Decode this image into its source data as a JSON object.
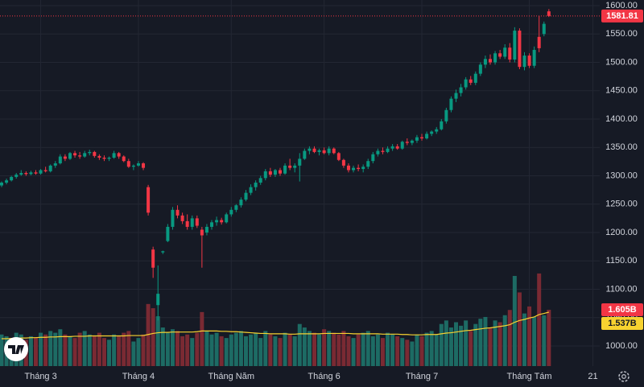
{
  "chart_data": {
    "type": "candlestick",
    "categories": [
      null,
      null,
      null,
      null,
      null,
      null,
      null,
      null,
      "Tháng 3",
      null,
      null,
      null,
      null,
      null,
      null,
      null,
      null,
      null,
      null,
      null,
      null,
      null,
      null,
      null,
      null,
      null,
      null,
      null,
      "Tháng 4",
      null,
      null,
      null,
      null,
      null,
      null,
      null,
      null,
      null,
      null,
      null,
      null,
      null,
      null,
      null,
      null,
      null,
      null,
      "Tháng Năm",
      null,
      null,
      null,
      null,
      null,
      null,
      null,
      null,
      null,
      null,
      null,
      null,
      null,
      null,
      null,
      null,
      null,
      null,
      "Tháng 6",
      null,
      null,
      null,
      null,
      null,
      null,
      null,
      null,
      null,
      null,
      null,
      null,
      null,
      null,
      null,
      null,
      null,
      null,
      null,
      "Tháng 7",
      null,
      null,
      null,
      null,
      null,
      null,
      null,
      null,
      null,
      null,
      null,
      null,
      null,
      null,
      null,
      null,
      null,
      null,
      null,
      null,
      null,
      "Tháng Tám",
      null,
      null,
      null,
      null,
      null,
      null,
      null,
      null,
      null,
      null,
      null,
      null,
      "21"
    ],
    "candles": [
      [
        1283,
        1290,
        1280,
        1288
      ],
      [
        1288,
        1295,
        1285,
        1292
      ],
      [
        1292,
        1300,
        1290,
        1298
      ],
      [
        1298,
        1305,
        1295,
        1302
      ],
      [
        1302,
        1310,
        1300,
        1305
      ],
      [
        1305,
        1308,
        1300,
        1303
      ],
      [
        1303,
        1309,
        1301,
        1306
      ],
      [
        1306,
        1310,
        1302,
        1304
      ],
      [
        1304,
        1312,
        1302,
        1310
      ],
      [
        1310,
        1316,
        1306,
        1308
      ],
      [
        1308,
        1320,
        1306,
        1318
      ],
      [
        1318,
        1326,
        1314,
        1322
      ],
      [
        1322,
        1338,
        1320,
        1334
      ],
      [
        1334,
        1338,
        1326,
        1330
      ],
      [
        1330,
        1342,
        1328,
        1340
      ],
      [
        1340,
        1344,
        1332,
        1336
      ],
      [
        1336,
        1342,
        1330,
        1334
      ],
      [
        1334,
        1344,
        1332,
        1340
      ],
      [
        1340,
        1346,
        1336,
        1342
      ],
      [
        1342,
        1344,
        1332,
        1335
      ],
      [
        1335,
        1338,
        1328,
        1332
      ],
      [
        1332,
        1336,
        1326,
        1330
      ],
      [
        1330,
        1334,
        1326,
        1332
      ],
      [
        1332,
        1344,
        1330,
        1340
      ],
      [
        1340,
        1342,
        1330,
        1334
      ],
      [
        1334,
        1336,
        1324,
        1326
      ],
      [
        1326,
        1330,
        1314,
        1316
      ],
      [
        1316,
        1320,
        1310,
        1318
      ],
      [
        1318,
        1326,
        1316,
        1322
      ],
      [
        1322,
        1324,
        1310,
        1314
      ],
      [
        1280,
        1284,
        1230,
        1235
      ],
      [
        1170,
        1175,
        1120,
        1138
      ],
      [
        1072,
        1142,
        1045,
        1092
      ],
      [
        1165,
        1168,
        1162,
        1167
      ],
      [
        1185,
        1215,
        1183,
        1210
      ],
      [
        1210,
        1245,
        1205,
        1240
      ],
      [
        1240,
        1248,
        1225,
        1230
      ],
      [
        1230,
        1235,
        1215,
        1220
      ],
      [
        1220,
        1232,
        1205,
        1210
      ],
      [
        1210,
        1230,
        1205,
        1225
      ],
      [
        1225,
        1230,
        1208,
        1212
      ],
      [
        1205,
        1210,
        1138,
        1195
      ],
      [
        1200,
        1215,
        1195,
        1210
      ],
      [
        1210,
        1222,
        1205,
        1218
      ],
      [
        1218,
        1228,
        1212,
        1222
      ],
      [
        1222,
        1226,
        1214,
        1218
      ],
      [
        1218,
        1235,
        1216,
        1232
      ],
      [
        1232,
        1245,
        1228,
        1240
      ],
      [
        1240,
        1250,
        1236,
        1248
      ],
      [
        1248,
        1262,
        1244,
        1258
      ],
      [
        1258,
        1275,
        1255,
        1270
      ],
      [
        1270,
        1285,
        1266,
        1280
      ],
      [
        1280,
        1292,
        1274,
        1288
      ],
      [
        1288,
        1300,
        1284,
        1296
      ],
      [
        1296,
        1312,
        1292,
        1308
      ],
      [
        1308,
        1314,
        1298,
        1302
      ],
      [
        1302,
        1312,
        1298,
        1310
      ],
      [
        1310,
        1314,
        1300,
        1304
      ],
      [
        1304,
        1322,
        1302,
        1318
      ],
      [
        1318,
        1330,
        1310,
        1314
      ],
      [
        1314,
        1322,
        1306,
        1318
      ],
      [
        1318,
        1340,
        1290,
        1330
      ],
      [
        1330,
        1348,
        1328,
        1344
      ],
      [
        1344,
        1352,
        1338,
        1348
      ],
      [
        1348,
        1352,
        1340,
        1342
      ],
      [
        1342,
        1348,
        1336,
        1345
      ],
      [
        1345,
        1350,
        1338,
        1340
      ],
      [
        1340,
        1352,
        1336,
        1348
      ],
      [
        1348,
        1350,
        1338,
        1340
      ],
      [
        1340,
        1342,
        1326,
        1328
      ],
      [
        1328,
        1330,
        1314,
        1318
      ],
      [
        1318,
        1322,
        1306,
        1310
      ],
      [
        1310,
        1318,
        1306,
        1314
      ],
      [
        1314,
        1320,
        1308,
        1312
      ],
      [
        1312,
        1320,
        1306,
        1316
      ],
      [
        1316,
        1330,
        1312,
        1326
      ],
      [
        1326,
        1342,
        1322,
        1338
      ],
      [
        1338,
        1348,
        1334,
        1344
      ],
      [
        1344,
        1350,
        1338,
        1342
      ],
      [
        1342,
        1352,
        1340,
        1348
      ],
      [
        1348,
        1356,
        1344,
        1352
      ],
      [
        1352,
        1356,
        1346,
        1348
      ],
      [
        1348,
        1362,
        1346,
        1360
      ],
      [
        1360,
        1366,
        1354,
        1358
      ],
      [
        1358,
        1364,
        1354,
        1362
      ],
      [
        1362,
        1372,
        1358,
        1368
      ],
      [
        1368,
        1374,
        1362,
        1366
      ],
      [
        1366,
        1378,
        1364,
        1374
      ],
      [
        1374,
        1380,
        1370,
        1378
      ],
      [
        1378,
        1386,
        1374,
        1382
      ],
      [
        1382,
        1400,
        1380,
        1396
      ],
      [
        1396,
        1420,
        1392,
        1416
      ],
      [
        1416,
        1440,
        1412,
        1436
      ],
      [
        1436,
        1452,
        1430,
        1446
      ],
      [
        1446,
        1462,
        1440,
        1456
      ],
      [
        1456,
        1474,
        1452,
        1470
      ],
      [
        1470,
        1476,
        1460,
        1464
      ],
      [
        1464,
        1484,
        1460,
        1480
      ],
      [
        1480,
        1500,
        1476,
        1496
      ],
      [
        1496,
        1512,
        1490,
        1506
      ],
      [
        1506,
        1514,
        1496,
        1500
      ],
      [
        1500,
        1520,
        1496,
        1516
      ],
      [
        1516,
        1522,
        1506,
        1510
      ],
      [
        1510,
        1532,
        1506,
        1526
      ],
      [
        1526,
        1534,
        1500,
        1505
      ],
      [
        1505,
        1562,
        1500,
        1556
      ],
      [
        1556,
        1560,
        1488,
        1492
      ],
      [
        1492,
        1518,
        1486,
        1512
      ],
      [
        1512,
        1516,
        1490,
        1494
      ],
      [
        1494,
        1528,
        1490,
        1522
      ],
      [
        1545,
        1582,
        1518,
        1525
      ],
      [
        1550,
        1572,
        1546,
        1568
      ],
      [
        1590,
        1594,
        1580,
        1581.81
      ],
      null,
      null,
      null,
      null,
      null,
      null,
      null,
      null,
      null
    ],
    "volume": {
      "values": [
        0.9,
        0.85,
        0.8,
        0.95,
        0.9,
        0.75,
        0.85,
        0.8,
        0.95,
        0.9,
        1.0,
        0.95,
        1.05,
        0.9,
        0.85,
        0.8,
        0.95,
        1.0,
        0.9,
        0.85,
        0.95,
        0.8,
        0.75,
        0.9,
        0.85,
        0.95,
        1.0,
        0.7,
        0.8,
        0.9,
        1.77,
        1.65,
        1.42,
        1.1,
        0.95,
        1.05,
        1.0,
        0.85,
        0.9,
        0.8,
        0.95,
        1.54,
        1.0,
        0.9,
        0.95,
        0.85,
        0.8,
        0.9,
        0.95,
        1.0,
        0.85,
        0.9,
        0.95,
        0.8,
        1.0,
        0.9,
        0.85,
        0.8,
        0.95,
        0.9,
        0.85,
        1.2,
        1.1,
        1.0,
        0.95,
        0.9,
        1.05,
        1.0,
        0.95,
        0.9,
        1.0,
        0.85,
        0.8,
        0.9,
        0.95,
        1.0,
        0.85,
        0.9,
        0.8,
        0.95,
        0.9,
        0.85,
        0.8,
        0.75,
        0.7,
        0.9,
        0.85,
        0.95,
        1.0,
        0.9,
        1.2,
        1.3,
        1.1,
        1.25,
        1.15,
        1.3,
        1.0,
        1.2,
        1.35,
        1.4,
        1.1,
        1.3,
        1.25,
        1.45,
        1.6,
        2.57,
        2.1,
        1.5,
        1.7,
        1.4,
        2.64,
        1.45,
        1.605,
        null,
        null,
        null,
        null,
        null,
        null,
        null,
        null,
        null
      ],
      "last_label": "1.605B"
    },
    "volume_ma": {
      "values": [
        0.78,
        0.78,
        0.79,
        0.79,
        0.8,
        0.8,
        0.81,
        0.81,
        0.82,
        0.82,
        0.83,
        0.83,
        0.84,
        0.84,
        0.84,
        0.85,
        0.85,
        0.85,
        0.86,
        0.86,
        0.86,
        0.86,
        0.86,
        0.86,
        0.86,
        0.86,
        0.87,
        0.87,
        0.87,
        0.87,
        0.9,
        0.93,
        0.95,
        0.96,
        0.96,
        0.97,
        0.97,
        0.97,
        0.97,
        0.97,
        0.98,
        1.0,
        1.0,
        1.0,
        1.0,
        0.99,
        0.99,
        0.98,
        0.98,
        0.97,
        0.96,
        0.95,
        0.94,
        0.93,
        0.93,
        0.92,
        0.92,
        0.92,
        0.92,
        0.91,
        0.91,
        0.92,
        0.92,
        0.92,
        0.92,
        0.92,
        0.93,
        0.93,
        0.93,
        0.93,
        0.93,
        0.93,
        0.92,
        0.92,
        0.92,
        0.92,
        0.92,
        0.92,
        0.91,
        0.91,
        0.91,
        0.91,
        0.9,
        0.9,
        0.89,
        0.89,
        0.89,
        0.9,
        0.9,
        0.9,
        0.92,
        0.94,
        0.95,
        0.97,
        0.99,
        1.01,
        1.02,
        1.04,
        1.06,
        1.08,
        1.09,
        1.11,
        1.13,
        1.15,
        1.18,
        1.25,
        1.3,
        1.33,
        1.37,
        1.4,
        1.47,
        1.5,
        1.537,
        null,
        null,
        null,
        null,
        null,
        null,
        null,
        null,
        null
      ],
      "last_label": "1.537B",
      "color": "#f7d230"
    },
    "up_color": "#089981",
    "down_color": "#f23645",
    "volume_up_color": "#1d6b64",
    "volume_down_color": "#7a2a33",
    "ylim": [
      964.5,
      1610
    ],
    "yticks": [
      {
        "value": 1000,
        "label": "1000.00"
      },
      {
        "value": 1050,
        "label": "1050.00"
      },
      {
        "value": 1100,
        "label": "1100.00"
      },
      {
        "value": 1150,
        "label": "1150.00"
      },
      {
        "value": 1200,
        "label": "1200.00"
      },
      {
        "value": 1250,
        "label": "1250.00"
      },
      {
        "value": 1300,
        "label": "1300.00"
      },
      {
        "value": 1350,
        "label": "1350.00"
      },
      {
        "value": 1400,
        "label": "1400.00"
      },
      {
        "value": 1450,
        "label": "1450.00"
      },
      {
        "value": 1500,
        "label": "1500.00"
      },
      {
        "value": 1550,
        "label": "1550.00"
      },
      {
        "value": 1600,
        "label": "1600.00"
      }
    ],
    "grid": true
  }
}
